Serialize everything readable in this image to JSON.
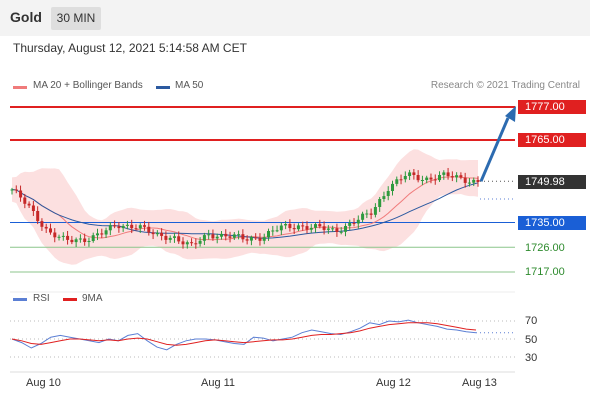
{
  "header": {
    "symbol": "Gold",
    "timeframe": "30 MIN"
  },
  "timestamp": "Thursday, August 12, 2021 5:14:58 AM CET",
  "legend": {
    "ma20": {
      "label": "MA 20 + Bollinger Bands",
      "color": "#f07b7b"
    },
    "ma50": {
      "label": "MA 50",
      "color": "#2c5aa0"
    },
    "rsi": {
      "label": "RSI",
      "color": "#5b7fd4"
    },
    "rsi_ma": {
      "label": "9MA",
      "color": "#e02020"
    }
  },
  "credit": "Research © 2021 Trading Central",
  "colors": {
    "up": "#2e9a3e",
    "down": "#c62828",
    "resistance": "#e02020",
    "support": "#1a5fd6",
    "target": "#2e8b2e",
    "arrow": "#2c6bb0"
  },
  "chart_data": [
    {
      "type": "candlestick",
      "title": "Gold 30 MIN",
      "ylim": [
        1710,
        1785
      ],
      "x_ticks": [
        "Aug 10",
        "Aug 11",
        "Aug 12",
        "Aug 13"
      ],
      "current_price": 1749.98,
      "levels": [
        {
          "value": 1777.0,
          "label": "1777.00",
          "kind": "resistance"
        },
        {
          "value": 1765.0,
          "label": "1765.00",
          "kind": "resistance"
        },
        {
          "value": 1749.98,
          "label": "1749.98",
          "kind": "last"
        },
        {
          "value": 1735.0,
          "label": "1735.00",
          "kind": "pivot"
        },
        {
          "value": 1726.0,
          "label": "1726.00",
          "kind": "support"
        },
        {
          "value": 1717.0,
          "label": "1717.00",
          "kind": "support"
        }
      ],
      "forecast": {
        "from": 1749.98,
        "to": 1777.0,
        "direction": "up"
      },
      "close_anchors": [
        1747,
        1740,
        1732,
        1728,
        1729,
        1731,
        1734,
        1734,
        1730,
        1730,
        1726,
        1731,
        1730,
        1729,
        1730,
        1733,
        1734,
        1733,
        1732,
        1735,
        1738,
        1748,
        1752,
        1751,
        1752,
        1751,
        1750
      ]
    },
    {
      "type": "line",
      "title": "RSI",
      "ylim": [
        20,
        80
      ],
      "y_ticks": [
        70,
        50,
        30
      ],
      "series": [
        {
          "name": "RSI",
          "values": [
            50,
            46,
            40,
            45,
            52,
            54,
            52,
            50,
            48,
            46,
            50,
            48,
            54,
            56,
            48,
            41,
            38,
            44,
            48,
            50,
            50,
            49,
            47,
            45,
            44,
            52,
            51,
            48,
            50,
            52,
            57,
            60,
            58,
            56,
            55,
            58,
            62,
            68,
            66,
            70,
            69,
            71,
            68,
            66,
            64,
            61,
            60,
            58,
            57
          ]
        },
        {
          "name": "9MA",
          "values": [
            50,
            48,
            45,
            44,
            46,
            48,
            50,
            50,
            49,
            48,
            49,
            48,
            50,
            51,
            50,
            47,
            44,
            43,
            44,
            46,
            48,
            49,
            48,
            47,
            46,
            47,
            48,
            49,
            49,
            50,
            52,
            54,
            55,
            55,
            56,
            57,
            59,
            62,
            64,
            66,
            67,
            68,
            68,
            68,
            67,
            65,
            63,
            61,
            60
          ]
        }
      ]
    }
  ]
}
